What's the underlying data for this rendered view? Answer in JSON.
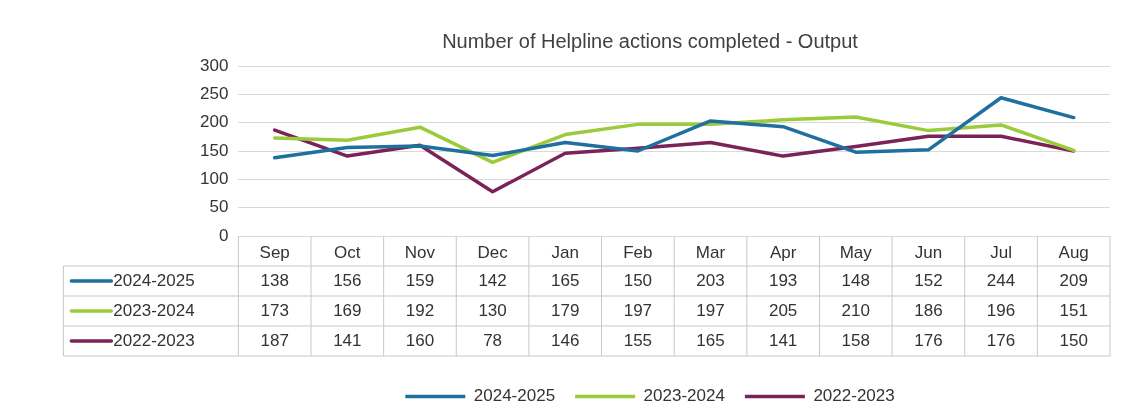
{
  "chart_data": {
    "type": "line",
    "title": "Number of Helpline actions completed - Output",
    "categories": [
      "Sep",
      "Oct",
      "Nov",
      "Dec",
      "Jan",
      "Feb",
      "Mar",
      "Apr",
      "May",
      "Jun",
      "Jul",
      "Aug"
    ],
    "series": [
      {
        "name": "2024-2025",
        "color": "#1f6f9f",
        "values": [
          138,
          156,
          159,
          142,
          165,
          150,
          203,
          193,
          148,
          152,
          244,
          209
        ]
      },
      {
        "name": "2023-2024",
        "color": "#9bcb3b",
        "values": [
          173,
          169,
          192,
          130,
          179,
          197,
          197,
          205,
          210,
          186,
          196,
          151
        ]
      },
      {
        "name": "2022-2023",
        "color": "#7b2357",
        "values": [
          187,
          141,
          160,
          78,
          146,
          155,
          165,
          141,
          158,
          176,
          176,
          150
        ]
      }
    ],
    "ylim": [
      0,
      300
    ],
    "yticks": [
      0,
      50,
      100,
      150,
      200,
      250,
      300
    ],
    "grid": "y",
    "legend": "bottom",
    "marker": "none",
    "line_style": "solid",
    "data_labels": true
  }
}
